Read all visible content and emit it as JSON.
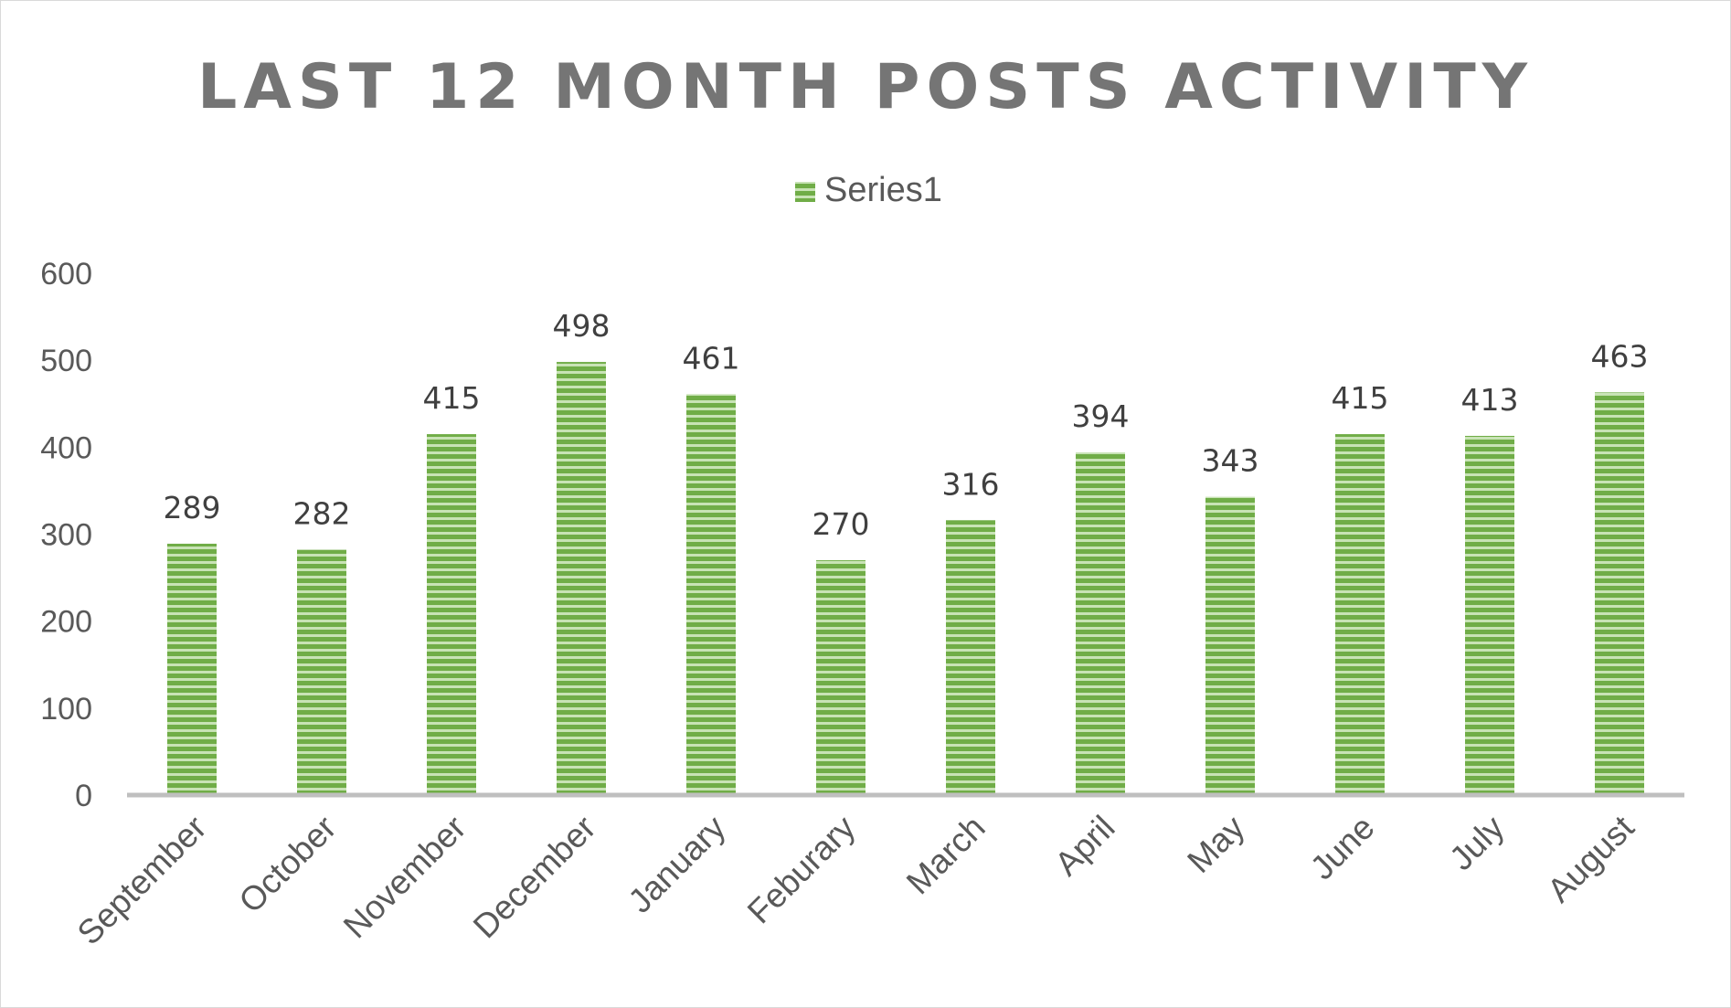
{
  "chart_data": {
    "type": "bar",
    "title": "LAST 12 MONTH POSTS ACTIVITY",
    "xlabel": "",
    "ylabel": "",
    "categories": [
      "September",
      "October",
      "November",
      "December",
      "January",
      "Feburary",
      "March",
      "April",
      "May",
      "June",
      "July",
      "August"
    ],
    "series": [
      {
        "name": "Series1",
        "values": [
          289,
          282,
          415,
          498,
          461,
          270,
          316,
          394,
          343,
          415,
          413,
          463
        ]
      }
    ],
    "ylim": [
      0,
      600
    ],
    "yticks": [
      "0",
      "100",
      "200",
      "300",
      "400",
      "500",
      "600"
    ],
    "grid": false,
    "legend_position": "top",
    "data_labels": true,
    "bar_pattern": "horizontal-stripes",
    "colors": {
      "bar": "#70ad47",
      "bar_light": "#c5e0b4",
      "axis": "#bfbfbf",
      "title": "#757575",
      "text": "#595959"
    }
  }
}
